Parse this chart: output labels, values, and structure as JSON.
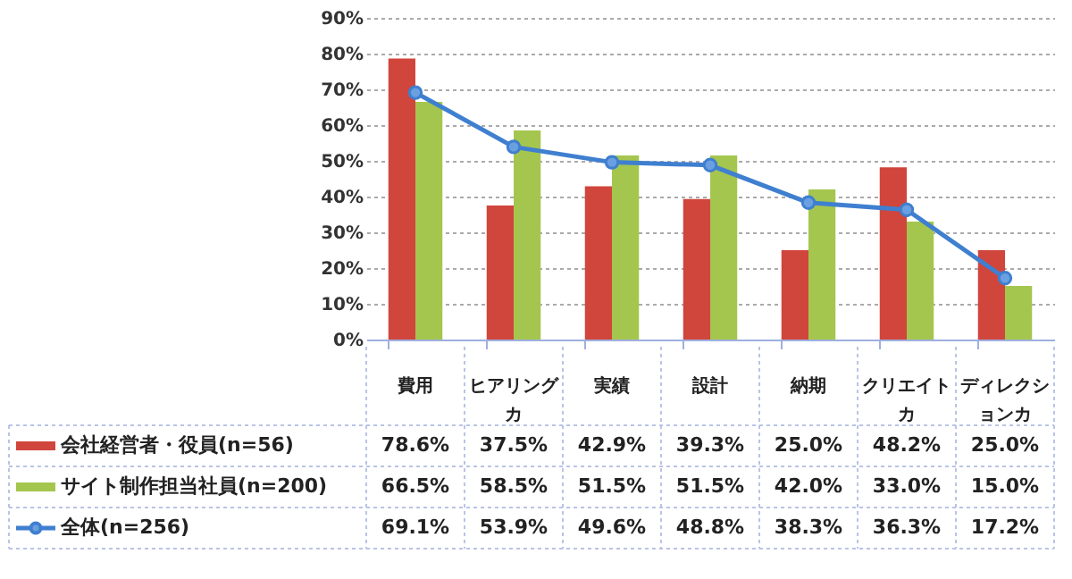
{
  "chart_data": {
    "type": "bar",
    "categories": [
      "費用",
      "ヒアリングカ",
      "実績",
      "設計",
      "納期",
      "クリエイトカ",
      "ディレクションカ"
    ],
    "series": [
      {
        "name": "会社経営者・役員(n=56)",
        "color": "#d0453c",
        "values": [
          78.6,
          37.5,
          42.9,
          39.3,
          25.0,
          48.2,
          25.0
        ],
        "value_labels": [
          "78.6%",
          "37.5%",
          "42.9%",
          "39.3%",
          "25.0%",
          "48.2%",
          "25.0%"
        ]
      },
      {
        "name": "サイト制作担当社員(n=200)",
        "color": "#a4c64e",
        "values": [
          66.5,
          58.5,
          51.5,
          51.5,
          42.0,
          33.0,
          15.0
        ],
        "value_labels": [
          "66.5%",
          "58.5%",
          "51.5%",
          "51.5%",
          "42.0%",
          "33.0%",
          "15.0%"
        ]
      },
      {
        "name": "全体(n=256)",
        "type": "line",
        "color": "#3f7fd0",
        "values": [
          69.1,
          53.9,
          49.6,
          48.8,
          38.3,
          36.3,
          17.2
        ],
        "value_labels": [
          "69.1%",
          "53.9%",
          "49.6%",
          "48.8%",
          "38.3%",
          "36.3%",
          "17.2%"
        ]
      }
    ],
    "ylim": [
      0,
      90
    ],
    "yticks": [
      {
        "value": 0,
        "label": "0%"
      },
      {
        "value": 10,
        "label": "10%"
      },
      {
        "value": 20,
        "label": "20%"
      },
      {
        "value": 30,
        "label": "30%"
      },
      {
        "value": 40,
        "label": "40%"
      },
      {
        "value": 50,
        "label": "50%"
      },
      {
        "value": 60,
        "label": "60%"
      },
      {
        "value": 70,
        "label": "70%"
      },
      {
        "value": 80,
        "label": "80%"
      },
      {
        "value": 90,
        "label": "90%"
      }
    ],
    "grid": "y",
    "legend": "bottom",
    "marker": "circle",
    "line_style": "solid"
  }
}
